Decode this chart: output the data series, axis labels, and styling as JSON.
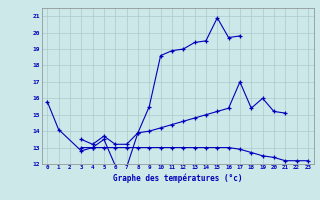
{
  "title": "Graphe des températures (°c)",
  "bg_color": "#cce8e8",
  "line_color": "#0000bb",
  "grid_color": "#aacccc",
  "x_min": -0.5,
  "x_max": 23.5,
  "y_min": 12,
  "y_max": 21.5,
  "s1_x": [
    0,
    1,
    3,
    4,
    5,
    6,
    7,
    8,
    9,
    10,
    11,
    12,
    13,
    14,
    15,
    16,
    17
  ],
  "s1_y": [
    15.8,
    14.1,
    12.8,
    13.0,
    13.5,
    11.9,
    11.8,
    13.9,
    15.5,
    18.6,
    18.9,
    19.0,
    19.4,
    19.5,
    20.9,
    19.7,
    19.8
  ],
  "s2_x": [
    3,
    4,
    5,
    6,
    7,
    8,
    9,
    10,
    11,
    12,
    13,
    14,
    15,
    16,
    17,
    18,
    19,
    20,
    21
  ],
  "s2_y": [
    13.5,
    13.2,
    13.7,
    13.2,
    13.2,
    13.9,
    14.0,
    14.2,
    14.4,
    14.6,
    14.8,
    15.0,
    15.2,
    15.4,
    17.0,
    15.4,
    16.0,
    15.2,
    15.1
  ],
  "s3_x": [
    3,
    4,
    5,
    6,
    7,
    8,
    9,
    10,
    11,
    12,
    13,
    14,
    15,
    16,
    17,
    18,
    19,
    20,
    21,
    22,
    23
  ],
  "s3_y": [
    13.0,
    13.0,
    13.0,
    13.0,
    13.0,
    13.0,
    13.0,
    13.0,
    13.0,
    13.0,
    13.0,
    13.0,
    13.0,
    13.0,
    12.9,
    12.7,
    12.5,
    12.4,
    12.2,
    12.2,
    12.2
  ],
  "yticks": [
    12,
    13,
    14,
    15,
    16,
    17,
    18,
    19,
    20,
    21
  ],
  "xticks": [
    0,
    1,
    2,
    3,
    4,
    5,
    6,
    7,
    8,
    9,
    10,
    11,
    12,
    13,
    14,
    15,
    16,
    17,
    18,
    19,
    20,
    21,
    22,
    23
  ]
}
